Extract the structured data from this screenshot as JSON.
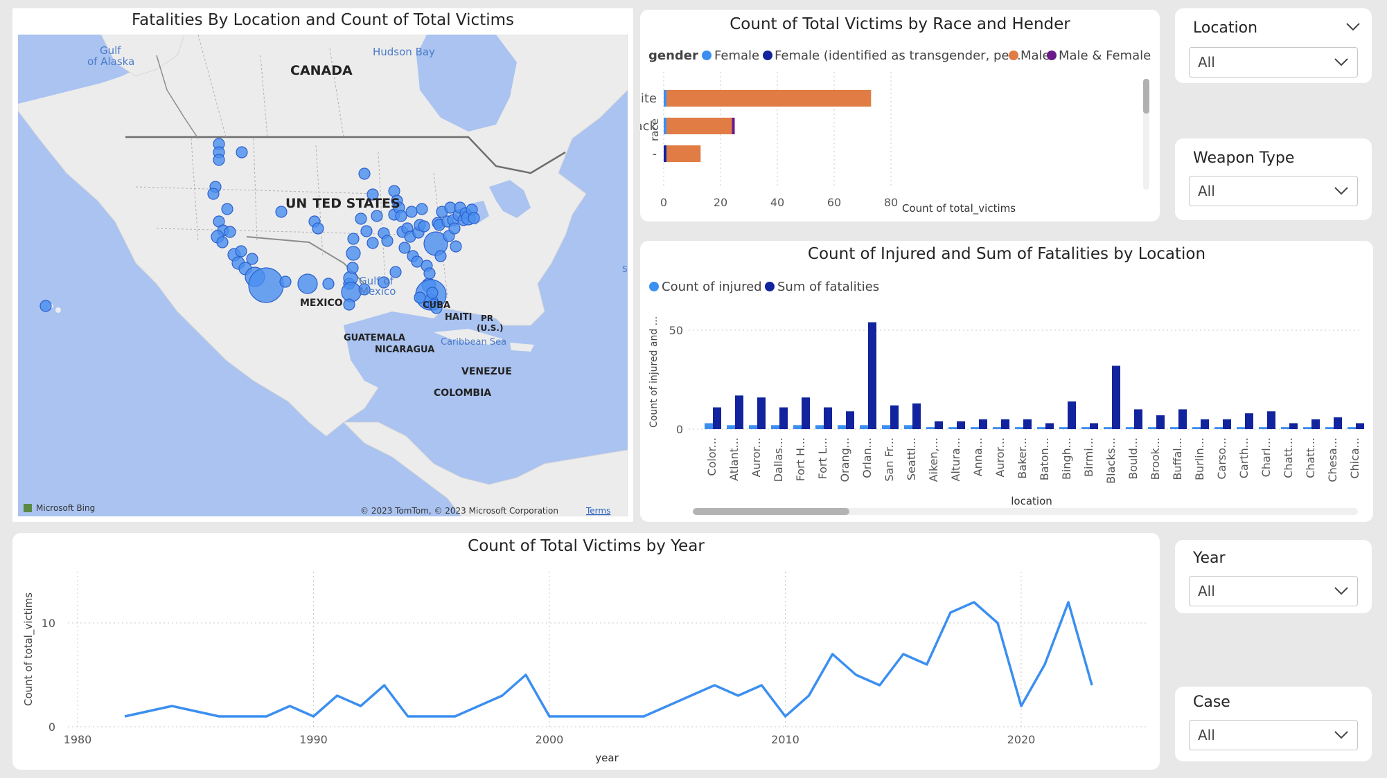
{
  "map": {
    "title": "Fatalities By Location and Count of Total Victims",
    "labels": {
      "gulf_alaska_1": "Gulf",
      "gulf_alaska_2": "of Alaska",
      "hudson_bay": "Hudson Bay",
      "canada": "CANADA",
      "us_1": "UN",
      "us_2": "TED STATES",
      "gulf_mexico_1": "Gulf of",
      "gulf_mexico_2": "Mexico",
      "mexico": "MEXICO",
      "cuba": "CUBA",
      "haiti": "HAITI",
      "pr_1": "PR",
      "pr_2": "(U.S.)",
      "guatemala": "GUATEMALA",
      "nicaragua": "NICARAGUA",
      "caribbean": "Caribbean Sea",
      "venezuela": "VENEZUE",
      "colombia": "COLOMBIA",
      "s": "S"
    },
    "attribution": "© 2023 TomTom, © 2023 Microsoft Corporation",
    "terms": "Terms",
    "bing": "Microsoft Bing",
    "bubble_color": "#4a8ef0"
  },
  "race_chart": {
    "title": "Count of Total Victims by Race and Hender",
    "legend_title": "gender",
    "legend": [
      {
        "name": "Female",
        "color": "#3b8ff0"
      },
      {
        "name": "Female (identified as transgender, pe...",
        "color": "#12239e"
      },
      {
        "name": "Male",
        "color": "#e07c44"
      },
      {
        "name": "Male & Female",
        "color": "#6b1a8a"
      }
    ],
    "ylabel": "race",
    "xlabel": "Count of total_victims",
    "xticks": [
      "0",
      "20",
      "40",
      "60",
      "80"
    ]
  },
  "injured_chart": {
    "title": "Count of Injured and Sum of Fatalities by Location",
    "legend": [
      {
        "name": "Count of injured",
        "color": "#3b8ff0"
      },
      {
        "name": "Sum of fatalities",
        "color": "#12239e"
      }
    ],
    "ylabel": "Count of injured and ...",
    "xlabel": "location",
    "yticks": [
      "0",
      "50"
    ]
  },
  "year_chart": {
    "title": "Count of Total Victims by Year",
    "ylabel": "Count of total_victims",
    "xlabel": "year",
    "xticks": [
      "1980",
      "1990",
      "2000",
      "2010",
      "2020"
    ],
    "yticks": [
      "0",
      "10"
    ]
  },
  "slicers": {
    "location": {
      "title": "Location",
      "value": "All"
    },
    "weapon": {
      "title": "Weapon Type",
      "value": "All"
    },
    "year": {
      "title": "Year",
      "value": "All"
    },
    "case": {
      "title": "Case",
      "value": "All"
    }
  },
  "chart_data": [
    {
      "type": "bar",
      "orientation": "horizontal",
      "stacked": true,
      "title": "Count of Total Victims by Race and Hender",
      "xlabel": "Count of total_victims",
      "ylabel": "race",
      "xlim": [
        0,
        80
      ],
      "categories": [
        "White",
        "Black",
        "-"
      ],
      "series": [
        {
          "name": "Female",
          "values": [
            1,
            1,
            0
          ]
        },
        {
          "name": "Female (identified as transgender, pe...",
          "values": [
            0,
            0,
            1
          ]
        },
        {
          "name": "Male",
          "values": [
            72,
            23,
            12
          ]
        },
        {
          "name": "Male & Female",
          "values": [
            0,
            1,
            0
          ]
        }
      ]
    },
    {
      "type": "bar",
      "title": "Count of Injured and Sum of Fatalities by Location",
      "xlabel": "location",
      "ylabel": "Count of injured and ...",
      "ylim": [
        0,
        55
      ],
      "categories": [
        "Color...",
        "Atlant...",
        "Auror...",
        "Dallas...",
        "Fort H...",
        "Fort L...",
        "Orang...",
        "Orlan...",
        "San Fr...",
        "Seattl...",
        "Aiken,...",
        "Altura...",
        "Anna...",
        "Auror...",
        "Baker...",
        "Baton...",
        "Bingh...",
        "Birmi...",
        "Blacks...",
        "Bould...",
        "Brook...",
        "Buffal...",
        "Burlin...",
        "Carso...",
        "Carth...",
        "Charl...",
        "Chatt...",
        "Chatt...",
        "Chesa...",
        "Chica..."
      ],
      "series": [
        {
          "name": "Count of injured",
          "values": [
            3,
            2,
            2,
            2,
            2,
            2,
            2,
            2,
            2,
            2,
            1,
            1,
            1,
            1,
            1,
            1,
            1,
            1,
            1,
            1,
            1,
            1,
            1,
            1,
            1,
            1,
            1,
            1,
            1,
            1
          ]
        },
        {
          "name": "Sum of fatalities",
          "values": [
            11,
            17,
            16,
            11,
            16,
            11,
            9,
            54,
            12,
            13,
            4,
            4,
            5,
            5,
            5,
            3,
            14,
            3,
            32,
            10,
            7,
            10,
            5,
            5,
            8,
            9,
            3,
            5,
            6,
            3
          ]
        }
      ]
    },
    {
      "type": "line",
      "title": "Count of Total Victims by Year",
      "xlabel": "year",
      "ylabel": "Count of total_victims",
      "xlim": [
        1980,
        2023
      ],
      "ylim": [
        0,
        14
      ],
      "x": [
        1982,
        1984,
        1986,
        1987,
        1988,
        1989,
        1990,
        1991,
        1992,
        1993,
        1994,
        1995,
        1996,
        1998,
        1999,
        2000,
        2001,
        2004,
        2005,
        2006,
        2007,
        2008,
        2009,
        2010,
        2011,
        2012,
        2013,
        2014,
        2015,
        2016,
        2017,
        2018,
        2019,
        2020,
        2021,
        2022,
        2023
      ],
      "series": [
        {
          "values": [
            1,
            2,
            1,
            1,
            1,
            2,
            1,
            3,
            2,
            4,
            1,
            1,
            1,
            3,
            5,
            1,
            1,
            1,
            2,
            3,
            4,
            3,
            4,
            1,
            3,
            7,
            5,
            4,
            7,
            6,
            11,
            12,
            10,
            2,
            6,
            12,
            4
          ]
        }
      ]
    }
  ]
}
